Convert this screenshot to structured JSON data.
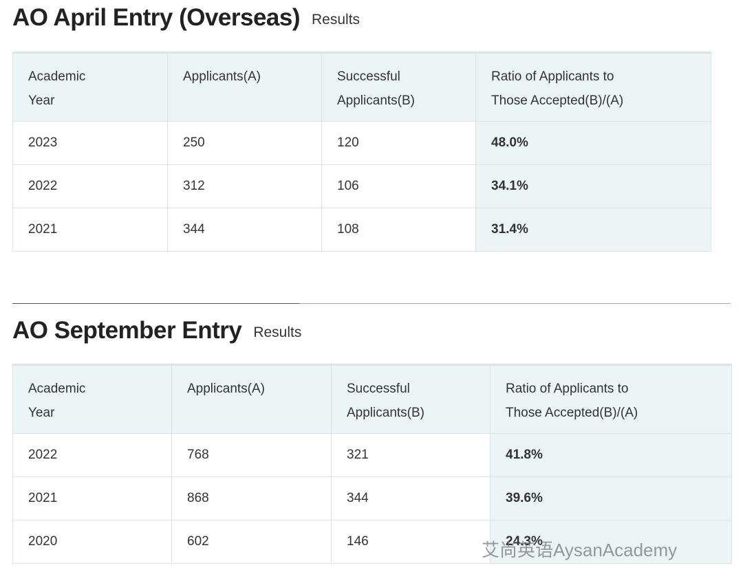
{
  "sections": [
    {
      "title": "AO April Entry (Overseas)",
      "subtitle": "Results",
      "table": {
        "header": [
          "Academic Year",
          "Applicants(A)",
          "Successful Applicants(B)",
          "Ratio of Applicants to Those Accepted(B)/(A)"
        ],
        "rows": [
          [
            "2023",
            "250",
            "120",
            "48.0%"
          ],
          [
            "2022",
            "312",
            "106",
            "34.1%"
          ],
          [
            "2021",
            "344",
            "108",
            "31.4%"
          ]
        ]
      }
    },
    {
      "title": "AO September Entry",
      "subtitle": "Results",
      "table": {
        "header": [
          "Academic Year",
          "Applicants(A)",
          "Successful Applicants(B)",
          "Ratio of Applicants to Those Accepted(B)/(A)"
        ],
        "rows": [
          [
            "2022",
            "768",
            "321",
            "41.8%"
          ],
          [
            "2021",
            "868",
            "344",
            "39.6%"
          ],
          [
            "2020",
            "602",
            "146",
            "24.3%"
          ]
        ]
      }
    }
  ],
  "watermark": "艾尚英语AysanAcademy"
}
